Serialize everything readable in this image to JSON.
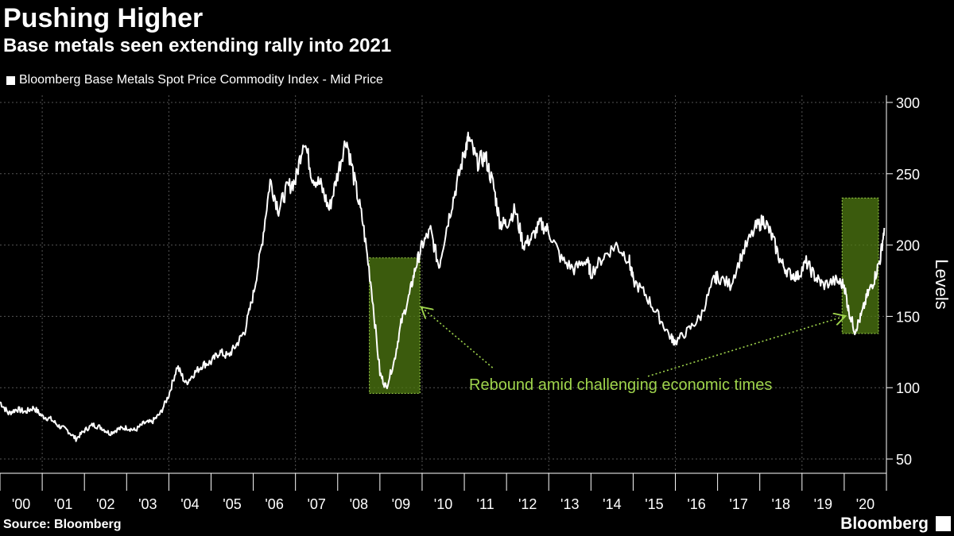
{
  "title": "Pushing Higher",
  "subtitle": "Base metals seen extending rally into 2021",
  "legend": {
    "label": "Bloomberg Base Metals Spot Price Commodity Index - Mid Price",
    "color": "#ffffff"
  },
  "source": "Source: Bloomberg",
  "brand": "Bloomberg",
  "colors": {
    "background": "#000000",
    "line": "#ffffff",
    "highlight": "#4f7a12",
    "annotation": "#9fd44c",
    "grid": "#555555"
  },
  "chart_data": {
    "type": "line",
    "ylabel": "Levels",
    "ylim": [
      40,
      305
    ],
    "xlim": [
      2000.0,
      2021.0
    ],
    "yticks": [
      50,
      100,
      150,
      200,
      250,
      300
    ],
    "xticks": [
      {
        "value": 2000.5,
        "label": "'00"
      },
      {
        "value": 2001.5,
        "label": "'01"
      },
      {
        "value": 2002.5,
        "label": "'02"
      },
      {
        "value": 2003.5,
        "label": "'03"
      },
      {
        "value": 2004.5,
        "label": "'04"
      },
      {
        "value": 2005.5,
        "label": "'05"
      },
      {
        "value": 2006.5,
        "label": "'06"
      },
      {
        "value": 2007.5,
        "label": "'07"
      },
      {
        "value": 2008.5,
        "label": "'08"
      },
      {
        "value": 2009.5,
        "label": "'09"
      },
      {
        "value": 2010.5,
        "label": "'10"
      },
      {
        "value": 2011.5,
        "label": "'11"
      },
      {
        "value": 2012.5,
        "label": "'12"
      },
      {
        "value": 2013.5,
        "label": "'13"
      },
      {
        "value": 2014.5,
        "label": "'14"
      },
      {
        "value": 2015.5,
        "label": "'15"
      },
      {
        "value": 2016.5,
        "label": "'16"
      },
      {
        "value": 2017.5,
        "label": "'17"
      },
      {
        "value": 2018.5,
        "label": "'18"
      },
      {
        "value": 2019.5,
        "label": "'19"
      },
      {
        "value": 2020.5,
        "label": "'20"
      }
    ],
    "grid": true,
    "series": [
      {
        "values": [
          [
            2000.0,
            90
          ],
          [
            2000.2,
            82
          ],
          [
            2000.4,
            85
          ],
          [
            2000.6,
            83
          ],
          [
            2000.8,
            86
          ],
          [
            2001.0,
            80
          ],
          [
            2001.2,
            78
          ],
          [
            2001.4,
            73
          ],
          [
            2001.6,
            70
          ],
          [
            2001.8,
            64
          ],
          [
            2002.0,
            70
          ],
          [
            2002.2,
            74
          ],
          [
            2002.4,
            72
          ],
          [
            2002.6,
            68
          ],
          [
            2002.8,
            71
          ],
          [
            2003.0,
            72
          ],
          [
            2003.2,
            70
          ],
          [
            2003.4,
            75
          ],
          [
            2003.6,
            76
          ],
          [
            2003.8,
            82
          ],
          [
            2004.0,
            95
          ],
          [
            2004.2,
            115
          ],
          [
            2004.4,
            103
          ],
          [
            2004.6,
            110
          ],
          [
            2004.8,
            116
          ],
          [
            2005.0,
            118
          ],
          [
            2005.2,
            125
          ],
          [
            2005.4,
            122
          ],
          [
            2005.6,
            130
          ],
          [
            2005.8,
            140
          ],
          [
            2006.0,
            165
          ],
          [
            2006.2,
            200
          ],
          [
            2006.4,
            245
          ],
          [
            2006.6,
            225
          ],
          [
            2006.8,
            240
          ],
          [
            2007.0,
            245
          ],
          [
            2007.2,
            275
          ],
          [
            2007.4,
            248
          ],
          [
            2007.6,
            242
          ],
          [
            2007.8,
            225
          ],
          [
            2008.0,
            250
          ],
          [
            2008.2,
            275
          ],
          [
            2008.4,
            245
          ],
          [
            2008.6,
            215
          ],
          [
            2008.8,
            170
          ],
          [
            2009.0,
            110
          ],
          [
            2009.15,
            100
          ],
          [
            2009.35,
            120
          ],
          [
            2009.5,
            145
          ],
          [
            2009.7,
            165
          ],
          [
            2009.85,
            185
          ],
          [
            2010.0,
            200
          ],
          [
            2010.2,
            210
          ],
          [
            2010.4,
            185
          ],
          [
            2010.6,
            215
          ],
          [
            2010.8,
            240
          ],
          [
            2011.0,
            265
          ],
          [
            2011.1,
            275
          ],
          [
            2011.3,
            258
          ],
          [
            2011.5,
            262
          ],
          [
            2011.7,
            240
          ],
          [
            2011.85,
            215
          ],
          [
            2012.0,
            215
          ],
          [
            2012.2,
            225
          ],
          [
            2012.4,
            200
          ],
          [
            2012.6,
            205
          ],
          [
            2012.8,
            215
          ],
          [
            2013.0,
            210
          ],
          [
            2013.3,
            190
          ],
          [
            2013.6,
            183
          ],
          [
            2013.9,
            190
          ],
          [
            2014.0,
            180
          ],
          [
            2014.3,
            192
          ],
          [
            2014.6,
            200
          ],
          [
            2014.9,
            190
          ],
          [
            2015.0,
            175
          ],
          [
            2015.3,
            165
          ],
          [
            2015.6,
            150
          ],
          [
            2015.9,
            135
          ],
          [
            2016.0,
            132
          ],
          [
            2016.3,
            140
          ],
          [
            2016.6,
            150
          ],
          [
            2016.9,
            175
          ],
          [
            2017.0,
            178
          ],
          [
            2017.3,
            172
          ],
          [
            2017.6,
            195
          ],
          [
            2017.9,
            212
          ],
          [
            2018.1,
            218
          ],
          [
            2018.3,
            205
          ],
          [
            2018.5,
            188
          ],
          [
            2018.7,
            180
          ],
          [
            2018.9,
            178
          ],
          [
            2019.1,
            188
          ],
          [
            2019.3,
            178
          ],
          [
            2019.5,
            172
          ],
          [
            2019.8,
            175
          ],
          [
            2020.0,
            172
          ],
          [
            2020.1,
            155
          ],
          [
            2020.25,
            140
          ],
          [
            2020.4,
            150
          ],
          [
            2020.55,
            165
          ],
          [
            2020.7,
            175
          ],
          [
            2020.85,
            190
          ],
          [
            2020.95,
            212
          ]
        ]
      }
    ],
    "highlights": [
      {
        "x0": 2008.75,
        "x1": 2009.95,
        "y0": 96,
        "y1": 191
      },
      {
        "x0": 2019.95,
        "x1": 2021.1,
        "y0": 138,
        "y1": 233
      }
    ],
    "annotation": {
      "text": "Rebound amid challenging economic times",
      "arrows": [
        {
          "from": [
            2011.67,
            114
          ],
          "to": [
            2010.0,
            156
          ]
        },
        {
          "from": [
            2015.35,
            108
          ],
          "to": [
            2020.0,
            150
          ]
        }
      ]
    }
  }
}
